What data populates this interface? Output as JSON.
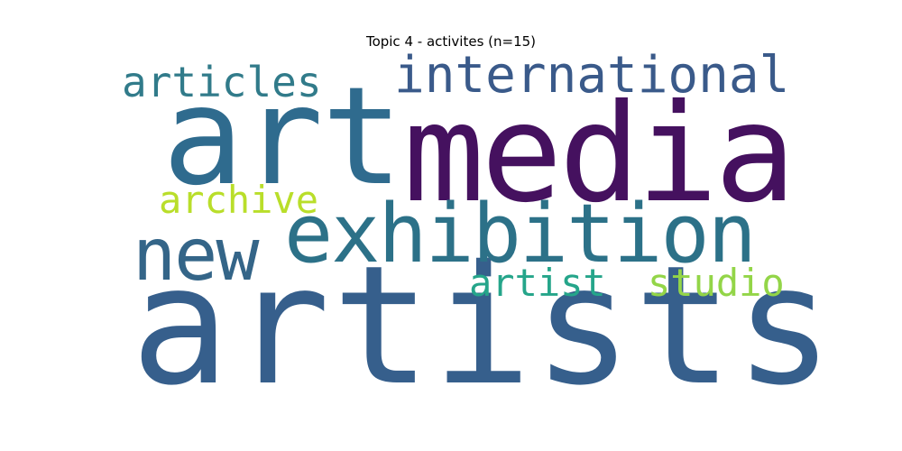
{
  "title": "Topic 4 - activites (n=15)",
  "chart_data": {
    "type": "wordcloud",
    "title": "Topic 4 - activites (n=15)",
    "words": [
      {
        "text": "artists",
        "weight": 1.0,
        "color": "#365f8c"
      },
      {
        "text": "media",
        "weight": 0.8,
        "color": "#45115f"
      },
      {
        "text": "art",
        "weight": 0.75,
        "color": "#2f6b8e"
      },
      {
        "text": "exhibition",
        "weight": 0.5,
        "color": "#2c7188"
      },
      {
        "text": "new",
        "weight": 0.4,
        "color": "#346588"
      },
      {
        "text": "international",
        "weight": 0.32,
        "color": "#3a5a8a"
      },
      {
        "text": "articles",
        "weight": 0.26,
        "color": "#317b8a"
      },
      {
        "text": "archive",
        "weight": 0.24,
        "color": "#b9de2a"
      },
      {
        "text": "artist",
        "weight": 0.24,
        "color": "#25a58a"
      },
      {
        "text": "studio",
        "weight": 0.24,
        "color": "#93d548"
      }
    ]
  }
}
